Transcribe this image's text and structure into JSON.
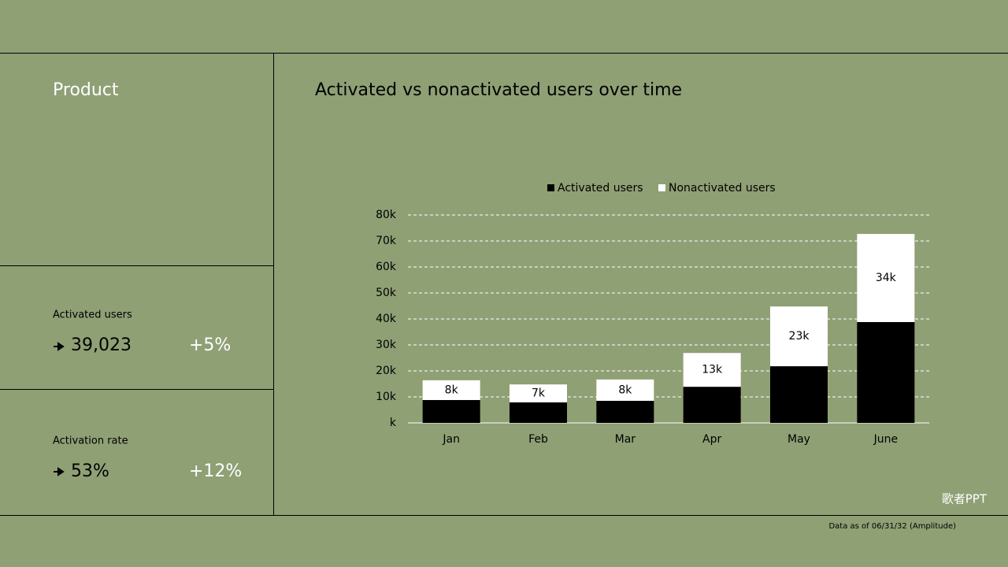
{
  "panel": {
    "title": "Product",
    "kpis": [
      {
        "label": "Activated users",
        "value": "39,023",
        "change": "+5%"
      },
      {
        "label": "Activation rate",
        "value": "53%",
        "change": "+12%"
      }
    ]
  },
  "footer": "Data as of 06/31/32 (Amplitude)",
  "watermark": "歌者PPT",
  "chart_data": {
    "type": "stacked_bar",
    "title": "Activated vs nonactivated users over time",
    "categories": [
      "Jan",
      "Feb",
      "Mar",
      "Apr",
      "May",
      "June"
    ],
    "series": [
      {
        "name": "Activated users",
        "color": "#000000",
        "values": [
          8800,
          7900,
          8500,
          13900,
          21800,
          38800
        ]
      },
      {
        "name": "Nonactivated users",
        "color": "#ffffff",
        "values": [
          7600,
          6900,
          8200,
          13000,
          23000,
          33900
        ],
        "value_labels": [
          "8k",
          "7k",
          "8k",
          "13k",
          "23k",
          "34k"
        ]
      }
    ],
    "ylim": [
      0,
      80000
    ],
    "yticks": [
      {
        "value": 0,
        "label": "k"
      },
      {
        "value": 10000,
        "label": "10k"
      },
      {
        "value": 20000,
        "label": "20k"
      },
      {
        "value": 30000,
        "label": "30k"
      },
      {
        "value": 40000,
        "label": "40k"
      },
      {
        "value": 50000,
        "label": "50k"
      },
      {
        "value": 60000,
        "label": "60k"
      },
      {
        "value": 70000,
        "label": "70k"
      },
      {
        "value": 80000,
        "label": "80k"
      }
    ],
    "grid": true,
    "legend": "top"
  }
}
